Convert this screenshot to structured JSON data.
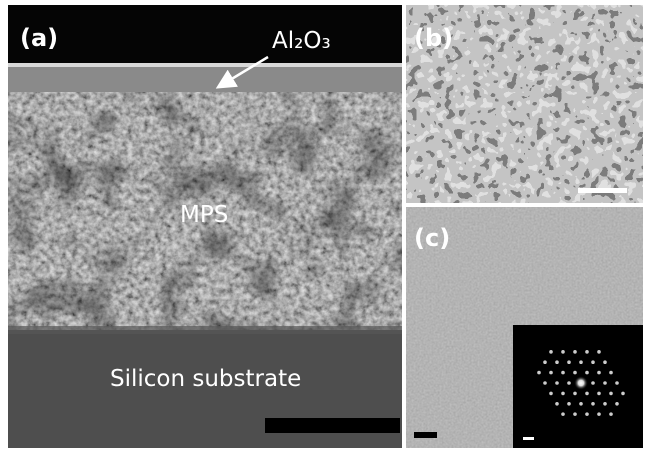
{
  "panels": {
    "a": {
      "label": "(a)",
      "annotations": [
        "Al₂O₃",
        "MPS",
        "Silicon substrate"
      ]
    },
    "b": {
      "label": "(b)"
    },
    "c": {
      "label": "(c)"
    }
  }
}
